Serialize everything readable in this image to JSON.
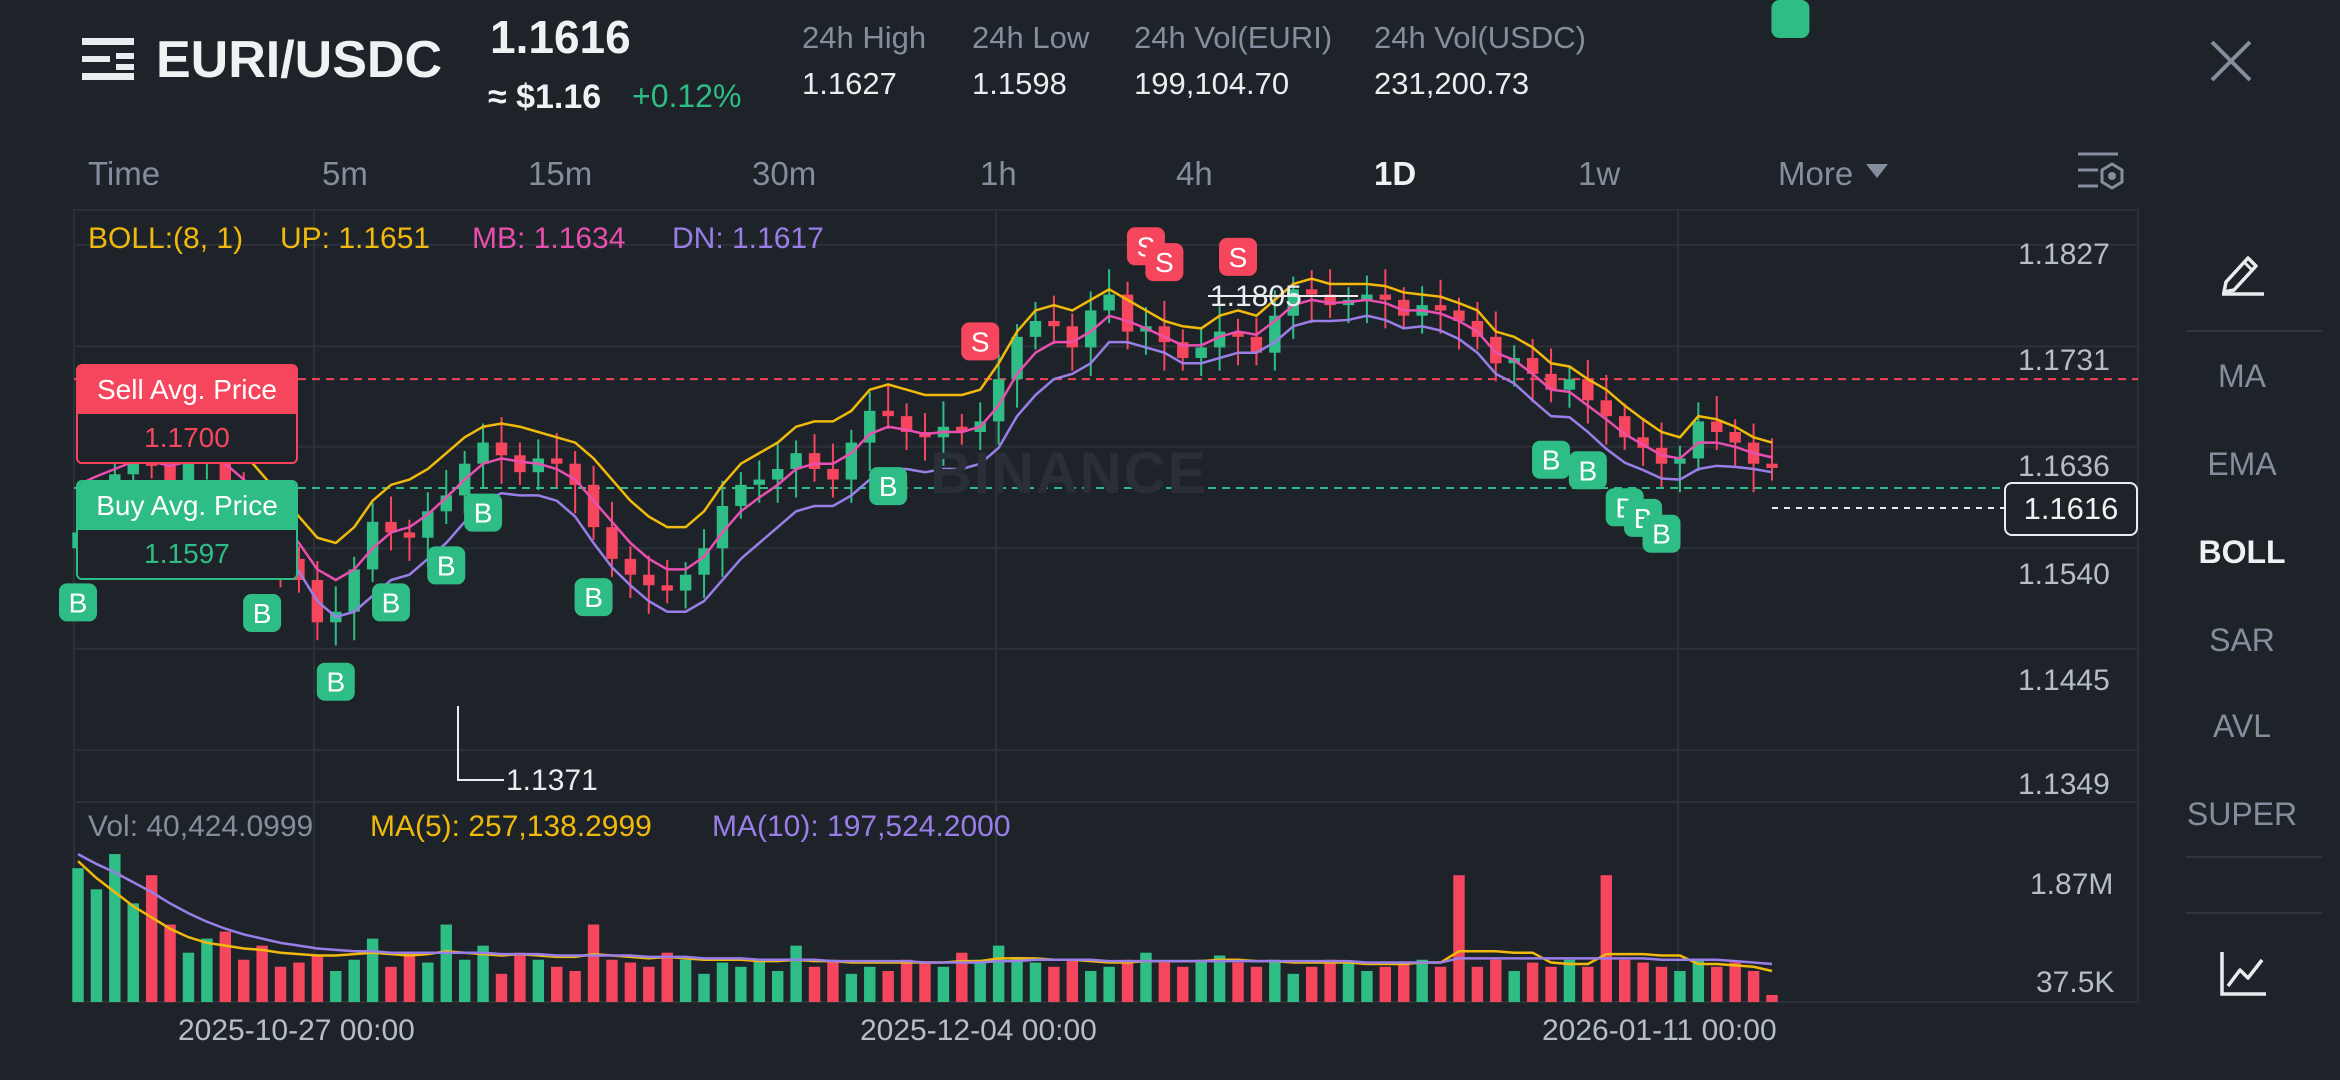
{
  "header": {
    "pair": "EURI/USDC",
    "price": "1.1616",
    "usd_price": "≈ $1.16",
    "change": "+0.12%",
    "stats": [
      {
        "label": "24h High",
        "value": "1.1627"
      },
      {
        "label": "24h Low",
        "value": "1.1598"
      },
      {
        "label": "24h Vol(EURI)",
        "value": "199,104.70"
      },
      {
        "label": "24h Vol(USDC)",
        "value": "231,200.73"
      }
    ]
  },
  "timeframes": [
    "Time",
    "5m",
    "15m",
    "30m",
    "1h",
    "4h",
    "1D",
    "1w",
    "More"
  ],
  "active_timeframe": "1D",
  "sidebar": {
    "items": [
      "MA",
      "EMA",
      "BOLL",
      "SAR",
      "AVL",
      "SUPER"
    ],
    "active": "BOLL"
  },
  "indicator": {
    "boll": "BOLL:(8, 1)",
    "up": "UP: 1.1651",
    "mb": "MB: 1.1634",
    "dn": "DN: 1.1617"
  },
  "volume_indicator": {
    "vol": "Vol: 40,424.0999",
    "ma5": "MA(5): 257,138.2999",
    "ma10": "MA(10): 197,524.2000"
  },
  "avg_prices": {
    "sell_label": "Sell Avg. Price",
    "sell_value": "1.1700",
    "buy_label": "Buy Avg. Price",
    "buy_value": "1.1597"
  },
  "current_price_tag": "1.1616",
  "high_label": "1.1805",
  "low_label": "1.1371",
  "watermark": "BINANCE",
  "trade_marker_letters": {
    "buy": "B",
    "sell": "S"
  },
  "colors": {
    "up": "#2ebd85",
    "down": "#f6465d",
    "boll_up": "#f0b90b",
    "boll_mb": "#e84fb0",
    "boll_dn": "#9a7ee8",
    "bg": "#1e2329"
  },
  "chart_data": {
    "type": "candlestick",
    "y_ticks": [
      "1.1827",
      "1.1731",
      "1.1636",
      "1.1540",
      "1.1445",
      "1.1349"
    ],
    "ylim": [
      1.13,
      1.186
    ],
    "x_ticks": [
      "2025-10-27 00:00",
      "2025-12-04 00:00",
      "2026-01-11 00:00"
    ],
    "volume_ticks": [
      "1.87M",
      "37.5K"
    ],
    "closes": [
      1.1555,
      1.158,
      1.161,
      1.1625,
      1.1618,
      1.16,
      1.1632,
      1.164,
      1.16,
      1.157,
      1.1545,
      1.153,
      1.151,
      1.147,
      1.148,
      1.152,
      1.1565,
      1.1555,
      1.155,
      1.1575,
      1.159,
      1.162,
      1.164,
      1.1628,
      1.1612,
      1.1625,
      1.162,
      1.16,
      1.156,
      1.153,
      1.1515,
      1.1505,
      1.15,
      1.1515,
      1.154,
      1.158,
      1.16,
      1.1605,
      1.1615,
      1.163,
      1.1615,
      1.1605,
      1.164,
      1.167,
      1.1665,
      1.165,
      1.1645,
      1.1655,
      1.165,
      1.166,
      1.17,
      1.174,
      1.1755,
      1.175,
      1.173,
      1.1765,
      1.178,
      1.1745,
      1.175,
      1.1735,
      1.172,
      1.173,
      1.1745,
      1.174,
      1.1725,
      1.176,
      1.1785,
      1.178,
      1.177,
      1.1775,
      1.178,
      1.1775,
      1.176,
      1.177,
      1.1765,
      1.1755,
      1.174,
      1.1715,
      1.172,
      1.1705,
      1.169,
      1.17,
      1.168,
      1.1665,
      1.1645,
      1.1635,
      1.162,
      1.1625,
      1.166,
      1.165,
      1.164,
      1.162,
      1.1616
    ],
    "boll_up": [
      1.164,
      1.1645,
      1.165,
      1.1655,
      1.165,
      1.1645,
      1.165,
      1.1652,
      1.1645,
      1.163,
      1.161,
      1.159,
      1.157,
      1.155,
      1.1545,
      1.156,
      1.1585,
      1.16,
      1.1605,
      1.1615,
      1.163,
      1.1645,
      1.1655,
      1.1658,
      1.1655,
      1.165,
      1.1645,
      1.164,
      1.1625,
      1.1605,
      1.1585,
      1.157,
      1.156,
      1.156,
      1.1575,
      1.16,
      1.162,
      1.163,
      1.164,
      1.1655,
      1.166,
      1.166,
      1.167,
      1.169,
      1.1695,
      1.169,
      1.1685,
      1.1685,
      1.1685,
      1.169,
      1.1715,
      1.1745,
      1.1765,
      1.177,
      1.1765,
      1.1775,
      1.1785,
      1.1775,
      1.1765,
      1.1755,
      1.175,
      1.1748,
      1.176,
      1.1765,
      1.176,
      1.1775,
      1.179,
      1.1795,
      1.179,
      1.179,
      1.179,
      1.1788,
      1.1782,
      1.178,
      1.1778,
      1.1772,
      1.1765,
      1.1745,
      1.174,
      1.173,
      1.1715,
      1.1712,
      1.17,
      1.169,
      1.1675,
      1.1662,
      1.165,
      1.1645,
      1.1665,
      1.1662,
      1.1655,
      1.1645,
      1.164
    ],
    "boll_mb": [
      1.16,
      1.1608,
      1.1615,
      1.1622,
      1.1622,
      1.1618,
      1.1622,
      1.1628,
      1.162,
      1.1605,
      1.1585,
      1.1565,
      1.1545,
      1.152,
      1.151,
      1.152,
      1.154,
      1.1555,
      1.156,
      1.1572,
      1.1588,
      1.1605,
      1.162,
      1.1625,
      1.1622,
      1.162,
      1.1615,
      1.1605,
      1.1585,
      1.1565,
      1.1545,
      1.153,
      1.152,
      1.152,
      1.1532,
      1.1555,
      1.1575,
      1.1588,
      1.16,
      1.1615,
      1.162,
      1.162,
      1.163,
      1.1648,
      1.1655,
      1.1652,
      1.1648,
      1.165,
      1.165,
      1.1655,
      1.1675,
      1.1705,
      1.1725,
      1.1735,
      1.1735,
      1.1745,
      1.176,
      1.1755,
      1.1748,
      1.174,
      1.1732,
      1.1732,
      1.174,
      1.1745,
      1.1742,
      1.1755,
      1.177,
      1.1775,
      1.1772,
      1.1773,
      1.1775,
      1.1772,
      1.1765,
      1.1765,
      1.1762,
      1.1755,
      1.1745,
      1.1725,
      1.1718,
      1.1705,
      1.169,
      1.1688,
      1.1675,
      1.1662,
      1.1648,
      1.1638,
      1.1628,
      1.1625,
      1.164,
      1.164,
      1.1636,
      1.163,
      1.1626
    ],
    "boll_dn": [
      1.156,
      1.1565,
      1.1575,
      1.1585,
      1.1592,
      1.159,
      1.1595,
      1.1602,
      1.1595,
      1.158,
      1.156,
      1.154,
      1.1518,
      1.149,
      1.1475,
      1.148,
      1.1495,
      1.151,
      1.1515,
      1.153,
      1.1545,
      1.1565,
      1.1585,
      1.1592,
      1.159,
      1.159,
      1.1585,
      1.157,
      1.1545,
      1.1522,
      1.1505,
      1.149,
      1.148,
      1.148,
      1.149,
      1.151,
      1.153,
      1.1545,
      1.156,
      1.1575,
      1.158,
      1.158,
      1.159,
      1.1605,
      1.1615,
      1.1615,
      1.1612,
      1.1615,
      1.1615,
      1.162,
      1.1635,
      1.1665,
      1.1685,
      1.17,
      1.1705,
      1.1715,
      1.1735,
      1.1735,
      1.173,
      1.1725,
      1.1715,
      1.1715,
      1.172,
      1.1725,
      1.1725,
      1.1735,
      1.175,
      1.1755,
      1.1755,
      1.1756,
      1.176,
      1.1756,
      1.1748,
      1.175,
      1.1746,
      1.1738,
      1.1725,
      1.1705,
      1.1696,
      1.168,
      1.1665,
      1.1664,
      1.165,
      1.1634,
      1.1621,
      1.1614,
      1.1606,
      1.1605,
      1.1615,
      1.1618,
      1.1617,
      1.1615,
      1.1612
    ],
    "volumes": [
      0.95,
      0.8,
      1.05,
      0.7,
      0.9,
      0.55,
      0.35,
      0.45,
      0.5,
      0.3,
      0.4,
      0.25,
      0.28,
      0.33,
      0.22,
      0.3,
      0.45,
      0.25,
      0.35,
      0.28,
      0.55,
      0.3,
      0.4,
      0.2,
      0.35,
      0.3,
      0.25,
      0.22,
      0.55,
      0.3,
      0.28,
      0.25,
      0.35,
      0.3,
      0.2,
      0.28,
      0.25,
      0.3,
      0.22,
      0.4,
      0.25,
      0.3,
      0.2,
      0.25,
      0.22,
      0.3,
      0.28,
      0.25,
      0.35,
      0.3,
      0.4,
      0.32,
      0.28,
      0.25,
      0.3,
      0.22,
      0.25,
      0.3,
      0.35,
      0.28,
      0.25,
      0.3,
      0.33,
      0.28,
      0.25,
      0.3,
      0.2,
      0.25,
      0.3,
      0.28,
      0.22,
      0.25,
      0.28,
      0.3,
      0.25,
      0.9,
      0.25,
      0.3,
      0.22,
      0.28,
      0.25,
      0.3,
      0.25,
      0.9,
      0.3,
      0.28,
      0.25,
      0.22,
      0.3,
      0.25,
      0.28,
      0.22,
      0.05
    ],
    "vol_ma5": [
      1.0,
      0.88,
      0.78,
      0.68,
      0.6,
      0.52,
      0.46,
      0.42,
      0.4,
      0.38,
      0.37,
      0.35,
      0.34,
      0.33,
      0.33,
      0.34,
      0.35,
      0.34,
      0.33,
      0.34,
      0.36,
      0.35,
      0.34,
      0.33,
      0.34,
      0.33,
      0.32,
      0.32,
      0.34,
      0.33,
      0.32,
      0.31,
      0.32,
      0.31,
      0.3,
      0.3,
      0.3,
      0.29,
      0.29,
      0.3,
      0.29,
      0.29,
      0.28,
      0.28,
      0.28,
      0.28,
      0.28,
      0.28,
      0.29,
      0.29,
      0.31,
      0.31,
      0.31,
      0.3,
      0.3,
      0.29,
      0.28,
      0.28,
      0.29,
      0.29,
      0.29,
      0.29,
      0.3,
      0.3,
      0.29,
      0.29,
      0.28,
      0.28,
      0.28,
      0.28,
      0.27,
      0.27,
      0.27,
      0.28,
      0.28,
      0.36,
      0.36,
      0.36,
      0.35,
      0.35,
      0.28,
      0.27,
      0.27,
      0.34,
      0.34,
      0.34,
      0.33,
      0.33,
      0.27,
      0.27,
      0.26,
      0.25,
      0.22
    ],
    "vol_ma10": [
      1.05,
      0.98,
      0.92,
      0.85,
      0.78,
      0.7,
      0.63,
      0.57,
      0.52,
      0.48,
      0.45,
      0.42,
      0.4,
      0.38,
      0.37,
      0.36,
      0.36,
      0.35,
      0.35,
      0.35,
      0.35,
      0.35,
      0.35,
      0.34,
      0.34,
      0.34,
      0.33,
      0.33,
      0.33,
      0.33,
      0.33,
      0.32,
      0.32,
      0.32,
      0.31,
      0.31,
      0.31,
      0.3,
      0.3,
      0.3,
      0.3,
      0.29,
      0.29,
      0.29,
      0.29,
      0.29,
      0.28,
      0.28,
      0.28,
      0.28,
      0.29,
      0.29,
      0.3,
      0.3,
      0.3,
      0.3,
      0.29,
      0.29,
      0.29,
      0.29,
      0.29,
      0.29,
      0.29,
      0.29,
      0.29,
      0.29,
      0.29,
      0.29,
      0.29,
      0.29,
      0.28,
      0.28,
      0.28,
      0.28,
      0.28,
      0.31,
      0.31,
      0.31,
      0.31,
      0.31,
      0.31,
      0.31,
      0.31,
      0.31,
      0.31,
      0.31,
      0.3,
      0.3,
      0.3,
      0.3,
      0.29,
      0.28,
      0.27
    ],
    "buy_markers": [
      0,
      4,
      7,
      8,
      10,
      14,
      17,
      20,
      22,
      28,
      44,
      80,
      82,
      84,
      85,
      86,
      93
    ],
    "sell_markers": [
      1,
      49,
      58,
      59,
      63
    ]
  }
}
